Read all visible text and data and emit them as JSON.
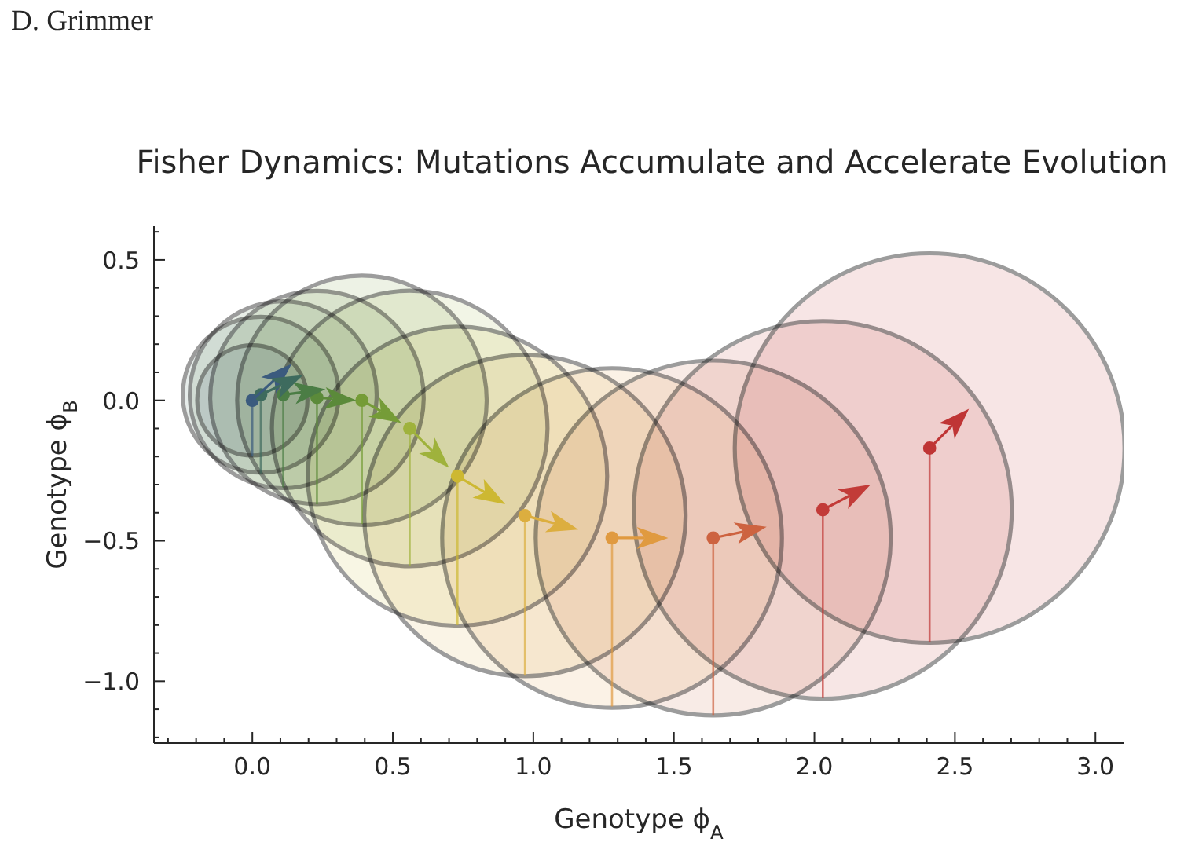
{
  "chart_data": {
    "type": "bubble",
    "title": "Fisher Dynamics: Mutations Accumulate and Accelerate Evolution",
    "xlabel": "Genotype ϕ$_{A}$",
    "ylabel": "Genotype ϕ$_{B}$",
    "annotations": [
      "D. Grimmer"
    ],
    "xlim": [
      -0.35,
      3.1
    ],
    "xticks": [
      {
        "value": -0.3,
        "label": null
      },
      {
        "value": -0.2,
        "label": null
      },
      {
        "value": -0.1,
        "label": null
      },
      {
        "value": 0,
        "label": "0.0"
      },
      {
        "value": 0.1,
        "label": null
      },
      {
        "value": 0.2,
        "label": null
      },
      {
        "value": 0.3,
        "label": null
      },
      {
        "value": 0.4,
        "label": null
      },
      0.5,
      {
        "value": 0.6,
        "label": null
      },
      {
        "value": 0.7,
        "label": null
      },
      {
        "value": 0.8,
        "label": null
      },
      {
        "value": 0.9,
        "label": null
      },
      {
        "value": 1,
        "label": "1.0"
      },
      {
        "value": 1.1,
        "label": null
      },
      {
        "value": 1.2,
        "label": null
      },
      {
        "value": 1.3,
        "label": null
      },
      {
        "value": 1.4,
        "label": null
      },
      1.5,
      {
        "value": 1.6,
        "label": null
      },
      {
        "value": 1.7,
        "label": null
      },
      {
        "value": 1.8,
        "label": null
      },
      {
        "value": 1.9,
        "label": null
      },
      {
        "value": 2,
        "label": "2.0"
      },
      {
        "value": 2.1,
        "label": null
      },
      {
        "value": 2.2,
        "label": null
      },
      {
        "value": 2.3,
        "label": null
      },
      {
        "value": 2.4,
        "label": null
      },
      2.5,
      {
        "value": 2.6,
        "label": null
      },
      {
        "value": 2.7,
        "label": null
      },
      {
        "value": 2.8,
        "label": null
      },
      {
        "value": 2.9,
        "label": null
      },
      {
        "value": 3,
        "label": "3.0"
      }
    ],
    "ylim": [
      -1.22,
      0.62
    ],
    "yticks": [
      {
        "value": -1.2,
        "label": null
      },
      {
        "value": -1.1,
        "label": null
      },
      {
        "value": -1,
        "label": "−1.0"
      },
      {
        "value": -0.9,
        "label": null
      },
      {
        "value": -0.8,
        "label": null
      },
      {
        "value": -0.7,
        "label": null
      },
      {
        "value": -0.6,
        "label": null
      },
      {
        "value": -0.5,
        "label": "−0.5"
      },
      {
        "value": -0.4,
        "label": null
      },
      {
        "value": -0.3,
        "label": null
      },
      {
        "value": -0.2,
        "label": null
      },
      {
        "value": -0.1,
        "label": null
      },
      {
        "value": 0,
        "label": "0.0"
      },
      {
        "value": 0.1,
        "label": null
      },
      {
        "value": 0.2,
        "label": null
      },
      {
        "value": 0.3,
        "label": null
      },
      {
        "value": 0.4,
        "label": null
      },
      0.5,
      {
        "value": 0.6,
        "label": null
      }
    ],
    "series": [
      {
        "x": [
          0,
          0.03,
          0.11,
          0.23,
          0.39,
          0.56,
          0.73,
          0.97,
          1.28,
          1.64,
          2.03,
          2.41
        ],
        "values": [
          0,
          0.02,
          0.02,
          0.01,
          0,
          -0.1,
          -0.27,
          -0.41,
          -0.49,
          -0.49,
          -0.39,
          -0.17
        ],
        "sizes": [
          0.08,
          0.16,
          0.23,
          0.3,
          0.41,
          0.5,
          0.59,
          0.68,
          0.76,
          0.83,
          0.94,
          1
        ],
        "colors": [
          "#e6eaee",
          "#e6ecea",
          "#e8eee7",
          "#eaf0e5",
          "#edf2e5",
          "#f2f5e6",
          "#f8f6e4",
          "#faf4e6",
          "#fbf2e6",
          "#f8ebe6",
          "#f7e6e5",
          "#f7e5e5"
        ]
      },
      {
        "type": "scatter",
        "x": [
          0,
          0.03,
          0.11,
          0.23,
          0.39,
          0.56,
          0.73,
          0.97,
          1.28,
          1.64,
          2.03,
          2.41
        ],
        "values": [
          0,
          0.02,
          0.02,
          0.01,
          0,
          -0.1,
          -0.27,
          -0.41,
          -0.49,
          -0.49,
          -0.39,
          -0.17
        ],
        "errors": [
          [
            -0.2,
            0
          ],
          [
            -0.26,
            0.02
          ],
          [
            -0.31,
            0.02
          ],
          [
            -0.37,
            0.01
          ],
          [
            -0.44,
            0
          ],
          [
            -0.59,
            -0.1
          ],
          [
            -0.8,
            -0.27
          ],
          [
            -0.98,
            -0.41
          ],
          [
            -1.09,
            -0.49
          ],
          [
            -1.12,
            -0.49
          ],
          [
            -1.06,
            -0.39
          ],
          [
            -0.86,
            -0.17
          ]
        ],
        "colors": [
          "#3b5b7e",
          "#3e6b5e",
          "#4b7d45",
          "#5b8a3a",
          "#759c37",
          "#9fb23c",
          "#cdb832",
          "#dcae3f",
          "#e09a40",
          "#cd6340",
          "#c23b38",
          "#bf3535"
        ]
      }
    ]
  }
}
